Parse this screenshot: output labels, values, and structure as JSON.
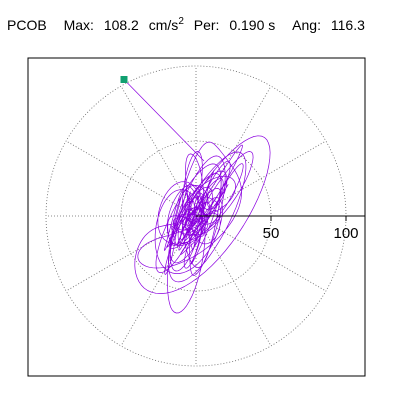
{
  "header": {
    "station": "PCOB",
    "max_label": "Max:",
    "max_value": "108.2",
    "max_unit": "cm/s",
    "max_unit_exp": "2",
    "per_label": "Per:",
    "per_value": "0.190 s",
    "ang_label": "Ang:",
    "ang_value": "116.3"
  },
  "chart_data": {
    "type": "scatter",
    "subtype": "polar particle-motion orbit (acceleration hodogram)",
    "title": "PCOB",
    "max_amplitude": 108.2,
    "max_amplitude_unit": "cm/s2",
    "dominant_period_s": 0.19,
    "principal_angle_deg": 116.3,
    "radial_axis": {
      "ticks": [
        50,
        100
      ],
      "tick_labels": [
        "50",
        "100"
      ],
      "range": [
        0,
        115
      ],
      "circles_at": [
        50,
        100
      ],
      "spokes_every_deg": 30,
      "grid": true,
      "grid_style": "dotted"
    },
    "series": [
      {
        "color": "#8b00e0",
        "extent_e": [
          -58,
          58
        ],
        "extent_n": [
          -78,
          90
        ],
        "orientation_deg": 116.3
      }
    ],
    "peak_marker": {
      "e": -48,
      "n": 91,
      "color": "#10a070"
    }
  }
}
